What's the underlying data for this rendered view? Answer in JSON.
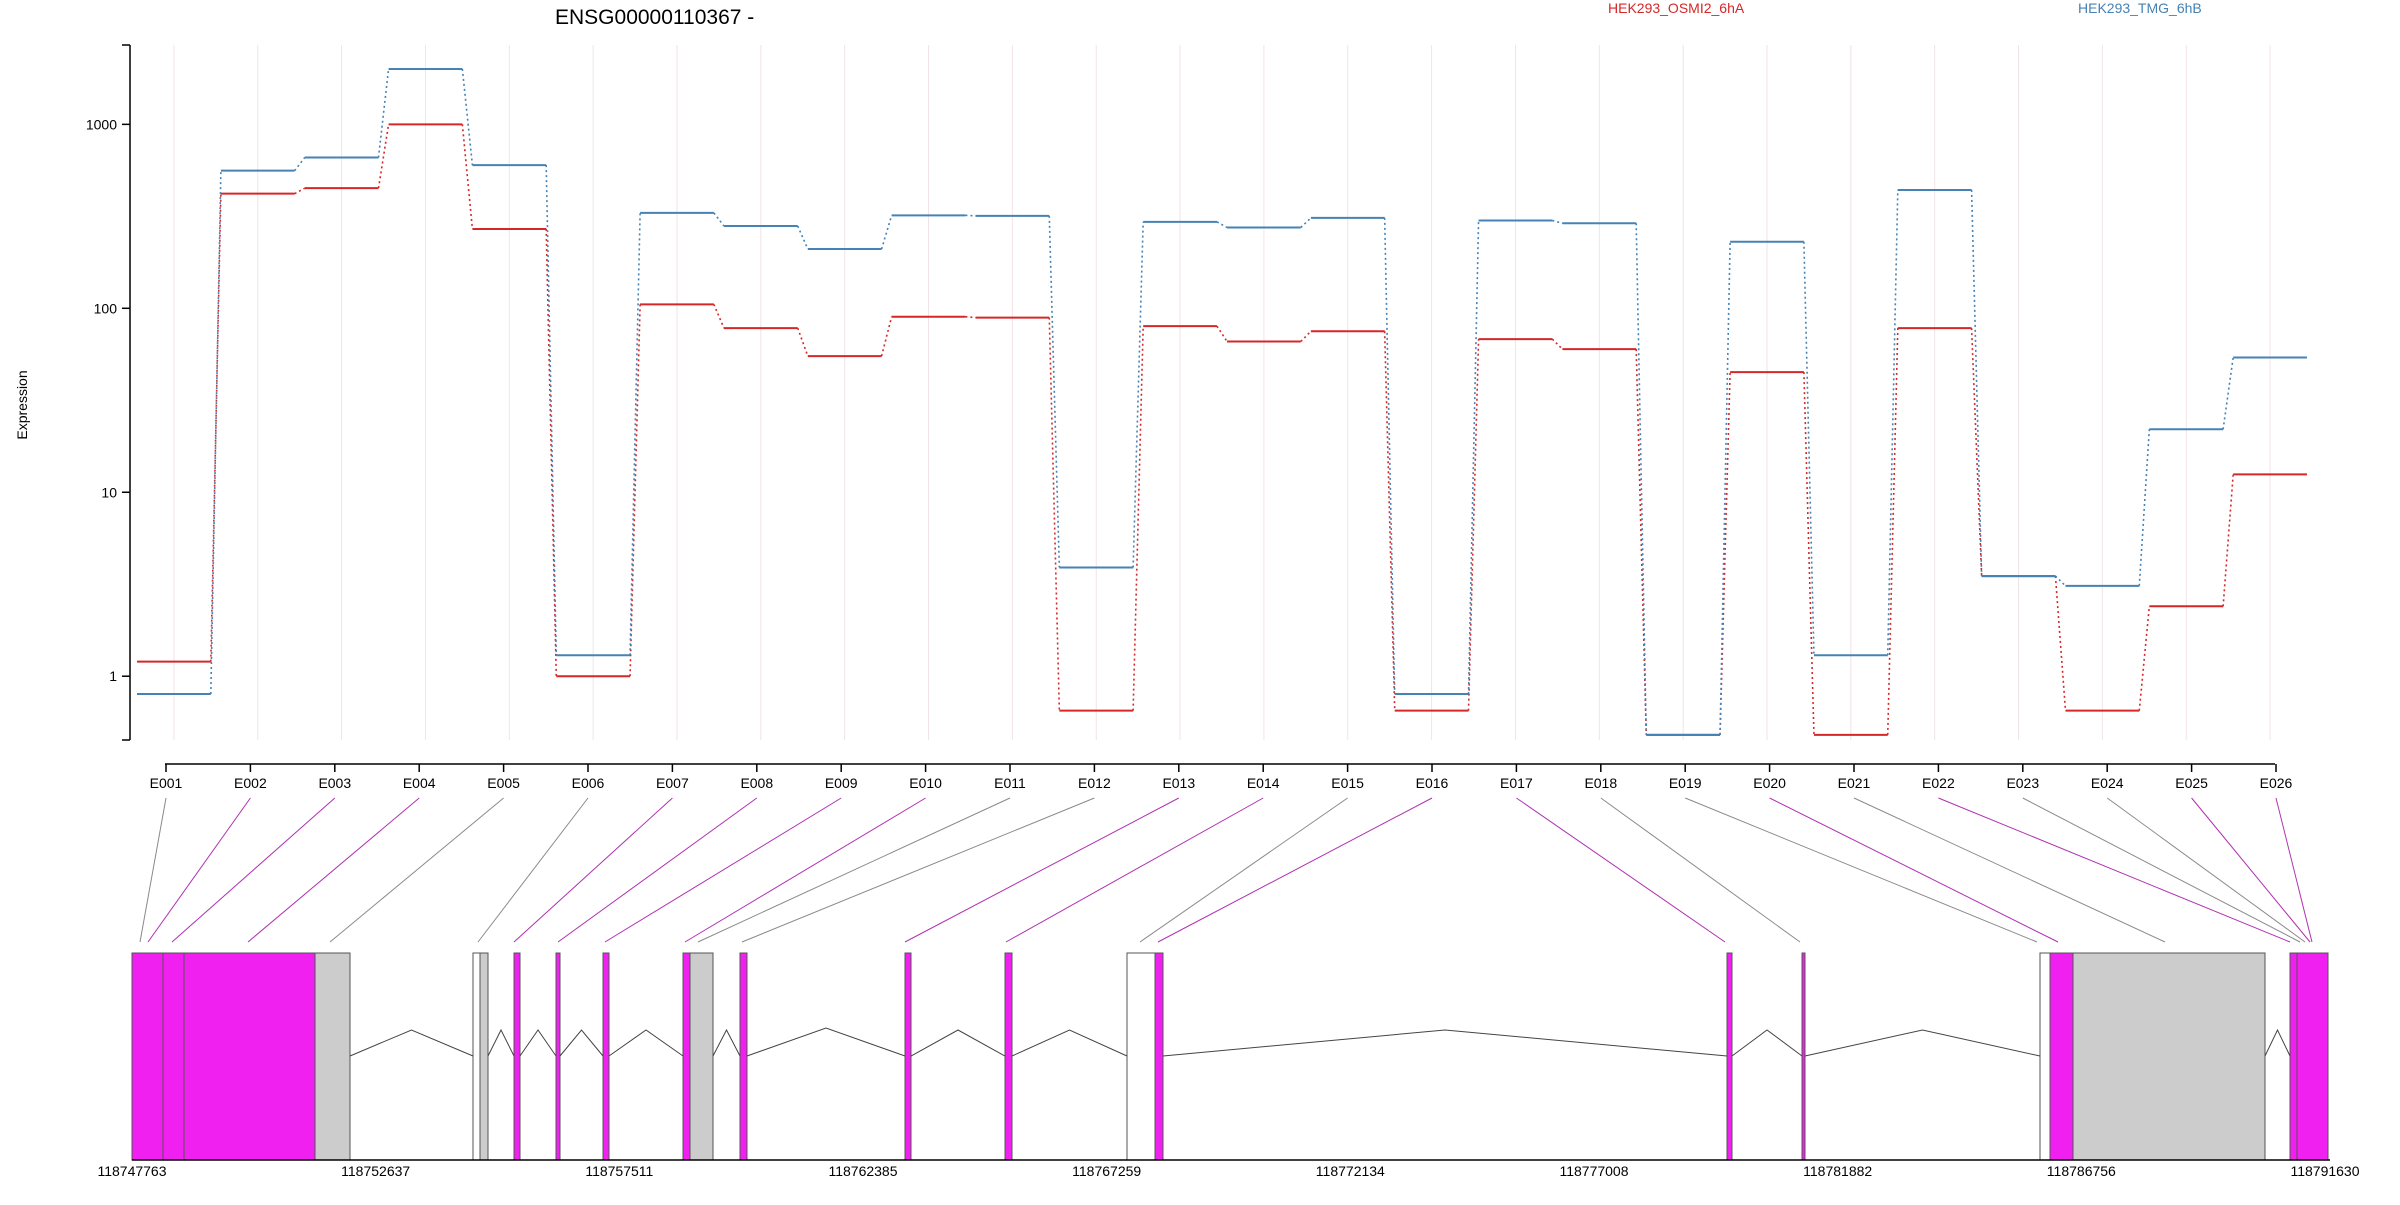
{
  "chart_data": {
    "type": "line",
    "title": "ENSG00000110367 -",
    "ylabel": "Expression",
    "yscale": "log",
    "ylim": [
      0.45,
      2700
    ],
    "yticks": [
      1,
      10,
      100,
      1000
    ],
    "ytick_labels": [
      "1",
      "10",
      "100",
      "1000"
    ],
    "categories": [
      "E001",
      "E002",
      "E003",
      "E004",
      "E005",
      "E006",
      "E007",
      "E008",
      "E009",
      "E010",
      "E011",
      "E012",
      "E013",
      "E014",
      "E015",
      "E016",
      "E017",
      "E018",
      "E019",
      "E020",
      "E021",
      "E022",
      "E023",
      "E024",
      "E025",
      "E026"
    ],
    "series": [
      {
        "name": "HEK293_OSMI2_6hA",
        "color": "#d62728",
        "values": [
          1.2,
          420,
          450,
          1000,
          270,
          1.0,
          105,
          78,
          55,
          90,
          89,
          0.65,
          80,
          66,
          75,
          0.65,
          68,
          60,
          0.48,
          45,
          0.48,
          78,
          3.5,
          0.65,
          2.4,
          12.5
        ]
      },
      {
        "name": "HEK293_TMG_6hB",
        "color": "#4682b4",
        "values": [
          0.8,
          560,
          660,
          2000,
          600,
          1.3,
          330,
          280,
          210,
          320,
          318,
          3.9,
          295,
          275,
          310,
          0.8,
          300,
          290,
          0.48,
          230,
          1.3,
          440,
          3.5,
          3.1,
          22,
          54
        ]
      }
    ],
    "genomic_axis": {
      "tick_labels": [
        "118747763",
        "118752637",
        "118757511",
        "118762385",
        "118767259",
        "118772134",
        "118777008",
        "118781882",
        "118786756",
        "118791630"
      ]
    },
    "gene_model": {
      "exon_colors": {
        "significant": "#f020f0",
        "other": "#cccccc",
        "outline": "#555555"
      }
    }
  }
}
